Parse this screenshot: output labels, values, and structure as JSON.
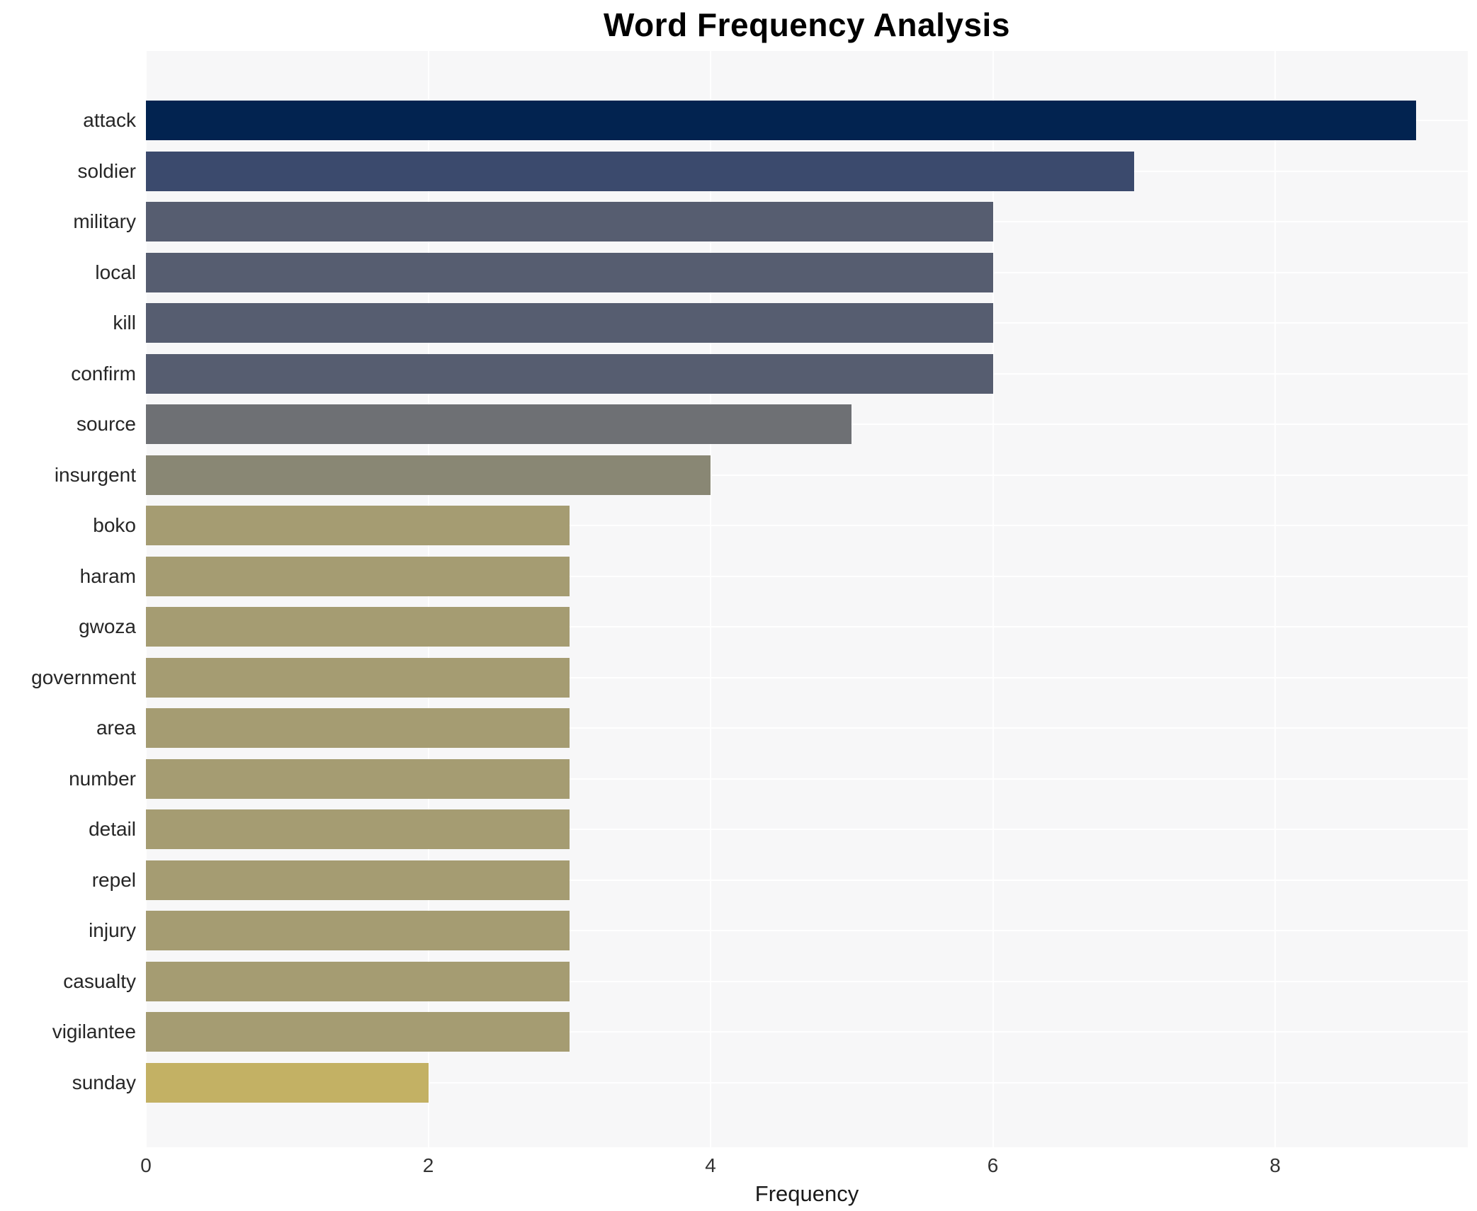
{
  "title": "Word Frequency Analysis",
  "chart_data": {
    "type": "bar",
    "orientation": "horizontal",
    "title": "Word Frequency Analysis",
    "xlabel": "Frequency",
    "ylabel": "",
    "xlim": [
      0,
      9.37
    ],
    "xticks": [
      0,
      2,
      4,
      6,
      8
    ],
    "grid": true,
    "legend": false,
    "categories": [
      "attack",
      "soldier",
      "military",
      "local",
      "kill",
      "confirm",
      "source",
      "insurgent",
      "boko",
      "haram",
      "gwoza",
      "government",
      "area",
      "number",
      "detail",
      "repel",
      "injury",
      "casualty",
      "vigilantee",
      "sunday"
    ],
    "values": [
      9,
      7,
      6,
      6,
      6,
      6,
      5,
      4,
      3,
      3,
      3,
      3,
      3,
      3,
      3,
      3,
      3,
      3,
      3,
      2
    ],
    "bar_colors": [
      "#022350",
      "#3b4a6d",
      "#565d70",
      "#565d70",
      "#565d70",
      "#565d70",
      "#6e7074",
      "#898774",
      "#a59c72",
      "#a59c72",
      "#a59c72",
      "#a59c72",
      "#a59c72",
      "#a59c72",
      "#a59c72",
      "#a59c72",
      "#a59c72",
      "#a59c72",
      "#a59c72",
      "#c3b164"
    ],
    "colors": {
      "plot_background": "#f7f7f8",
      "figure_background": "#ffffff",
      "gridline": "#ffffff",
      "tick_label": "#333333",
      "category_label": "#262626",
      "title": "#000000"
    }
  }
}
